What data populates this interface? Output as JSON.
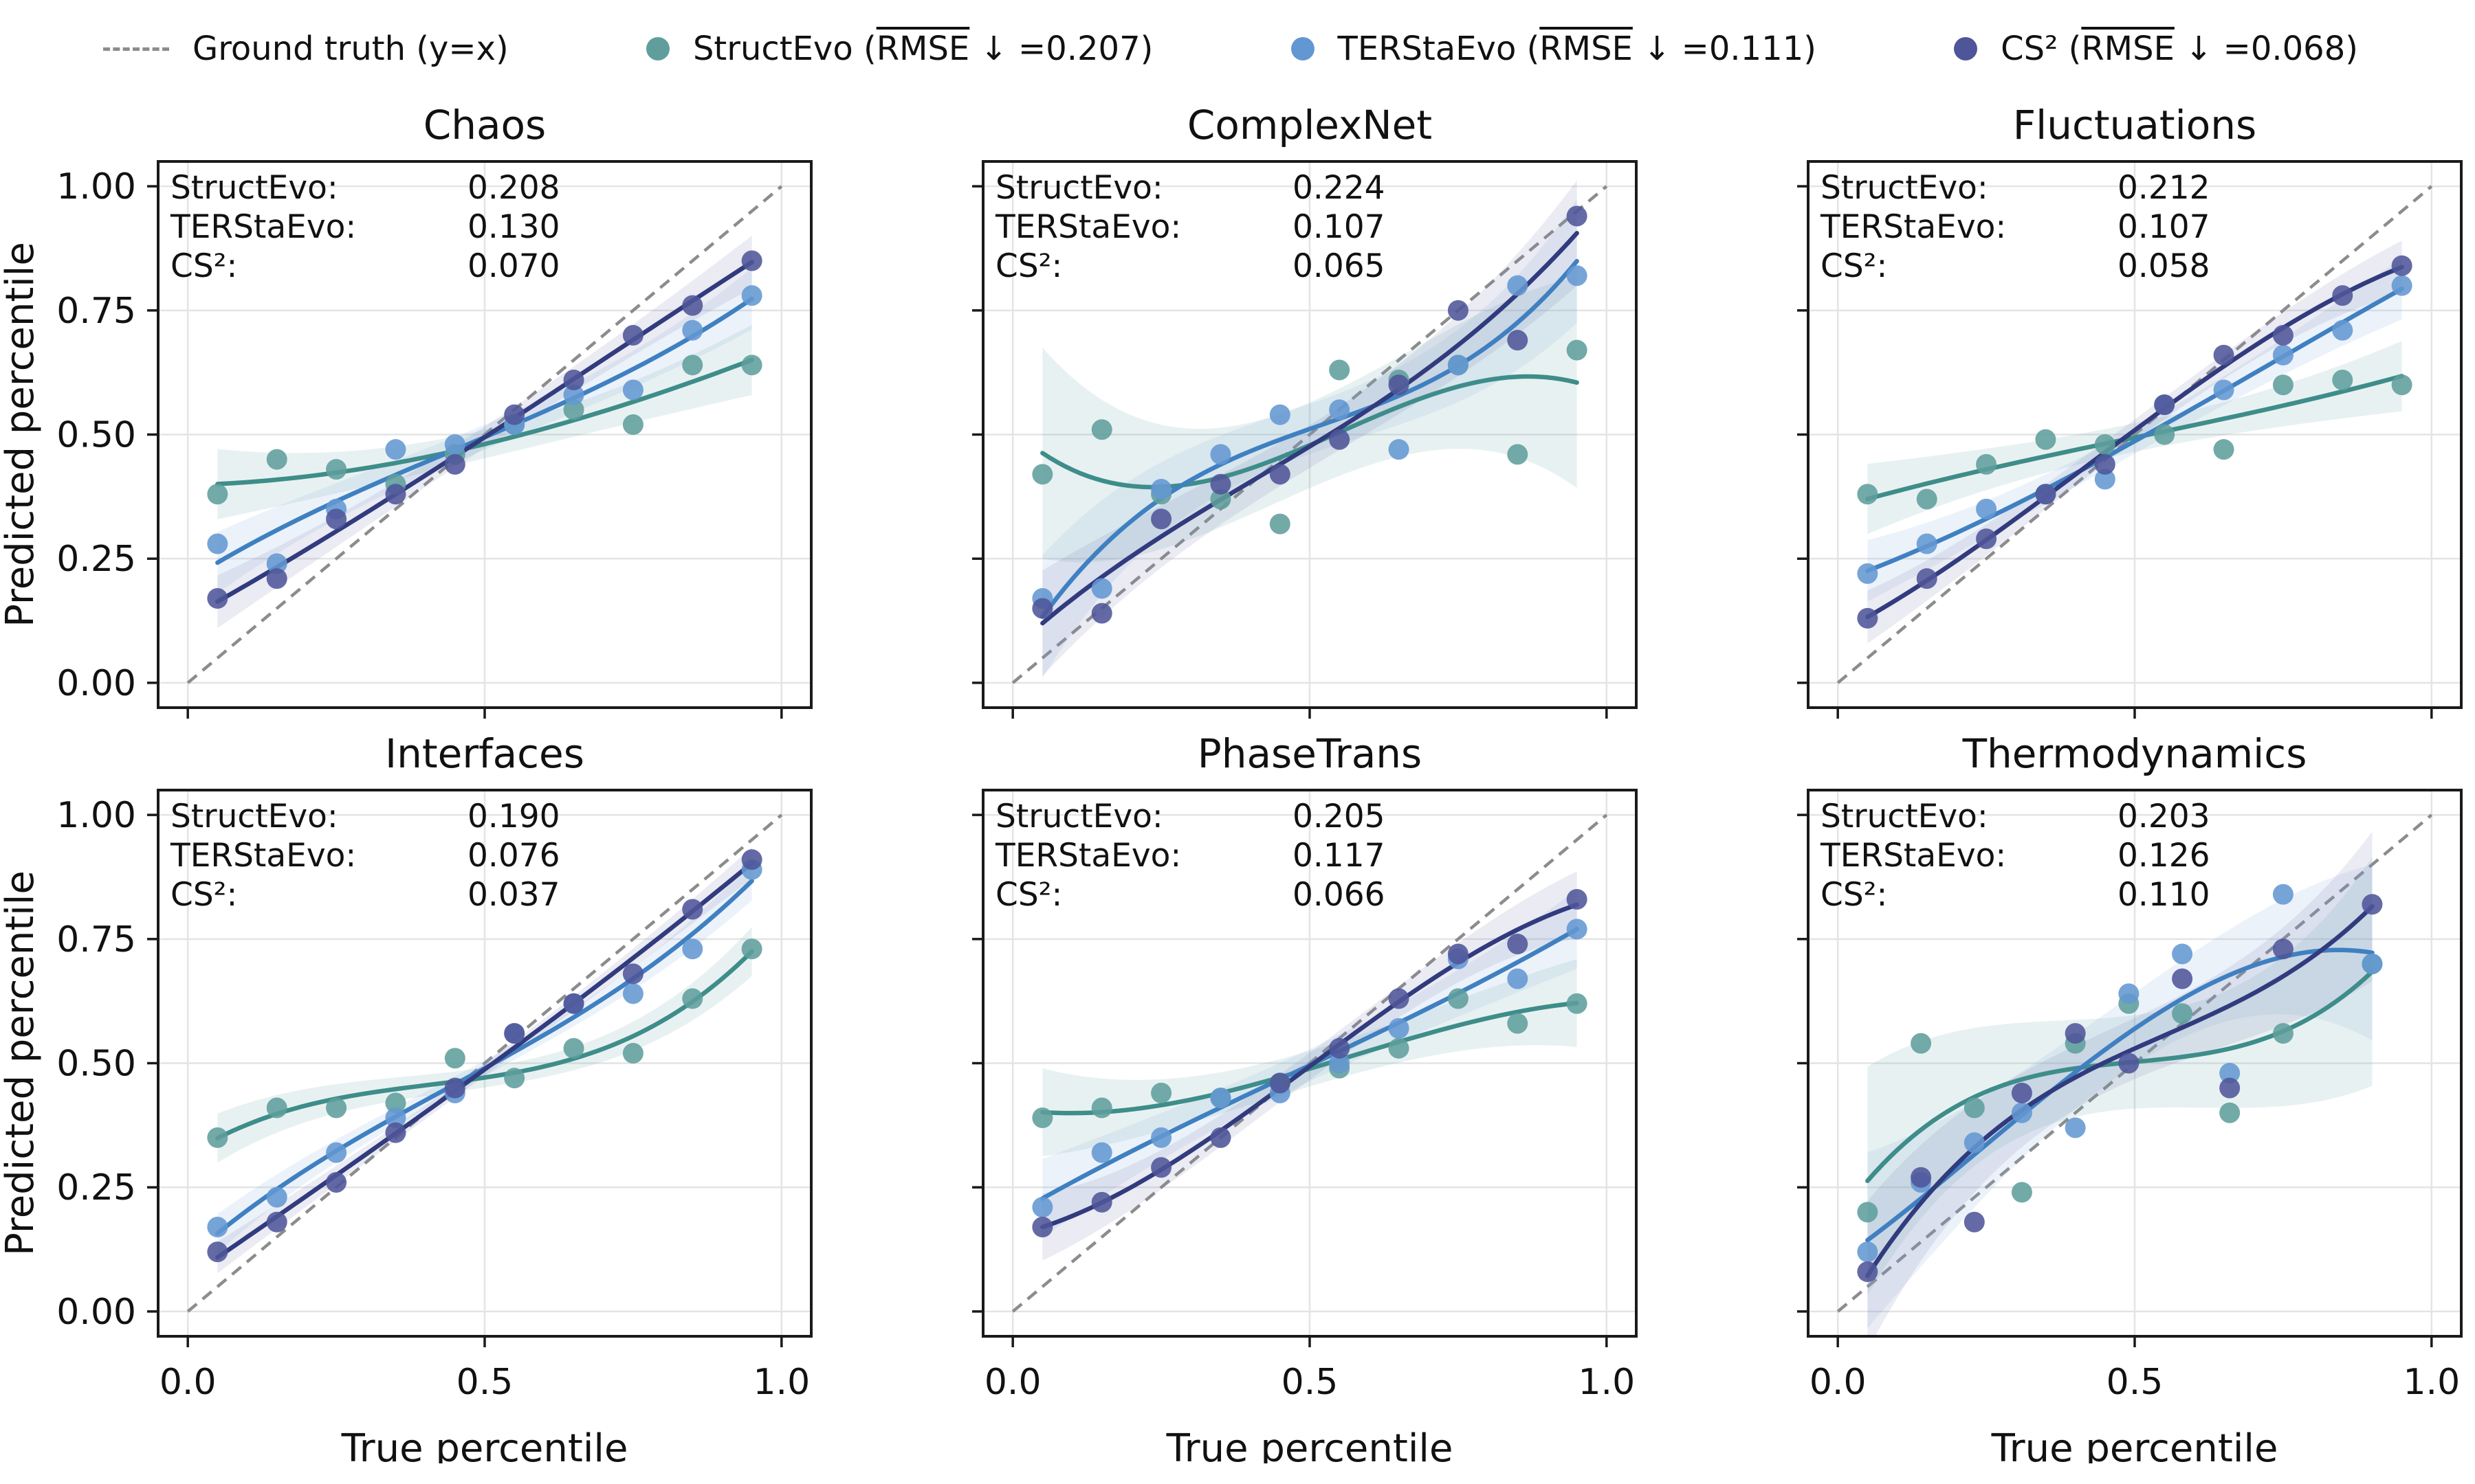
{
  "legend": {
    "ground_truth": {
      "label": "Ground truth (y=x)"
    },
    "series": [
      {
        "key": "structevo",
        "prefix": "StructEvo (",
        "rmse_word": "RMSE",
        "suffix": " ↓ =0.207)"
      },
      {
        "key": "terstaevo",
        "prefix": "TERStaEvo (",
        "rmse_word": "RMSE",
        "suffix": " ↓ =0.111)"
      },
      {
        "key": "cs2",
        "prefix": "CS² (",
        "rmse_word": "RMSE",
        "suffix": " ↓ =0.068)"
      }
    ]
  },
  "colors": {
    "structevo": {
      "line": "#3e8d8a",
      "marker": "#5f9e9c",
      "band": "#6fa8a6"
    },
    "terstaevo": {
      "line": "#3f80c1",
      "marker": "#6397d1",
      "band": "#86afdd"
    },
    "cs2": {
      "line": "#313b7e",
      "marker": "#4e5598",
      "band": "#7b80b6"
    },
    "identity": "#8c8c8c",
    "grid": "#e4e4e4",
    "spine": "#1a1a1a",
    "text": "#111111"
  },
  "axes": {
    "x_label": "True percentile",
    "y_label": "Predicted percentile",
    "x_ticks": {
      "values": [
        0.0,
        0.5,
        1.0
      ],
      "labels": [
        "0.0",
        "0.5",
        "1.0"
      ]
    },
    "y_ticks": {
      "values": [
        0.0,
        0.25,
        0.5,
        0.75,
        1.0
      ],
      "labels": [
        "0.00",
        "0.25",
        "0.50",
        "0.75",
        "1.00"
      ]
    },
    "xlim": [
      -0.05,
      1.05
    ],
    "ylim": [
      -0.05,
      1.05
    ],
    "grid": true
  },
  "chart_data": {
    "type": "scatter",
    "title": "",
    "legend_position": "top",
    "subplots": [
      {
        "title": "Chaos",
        "annotations": [
          {
            "label": "StructEvo:",
            "value": "0.208"
          },
          {
            "label": "TERStaEvo:",
            "value": "0.130"
          },
          {
            "label": "CS²:",
            "value": "0.070"
          }
        ],
        "series": [
          {
            "key": "structevo",
            "name": "StructEvo",
            "band": 0.04,
            "x": [
              0.05,
              0.15,
              0.25,
              0.35,
              0.45,
              0.55,
              0.65,
              0.75,
              0.85,
              0.95
            ],
            "y": [
              0.38,
              0.45,
              0.43,
              0.4,
              0.46,
              0.52,
              0.55,
              0.52,
              0.64,
              0.64
            ]
          },
          {
            "key": "terstaevo",
            "name": "TERStaEvo",
            "band": 0.035,
            "x": [
              0.05,
              0.15,
              0.25,
              0.35,
              0.45,
              0.55,
              0.65,
              0.75,
              0.85,
              0.95
            ],
            "y": [
              0.28,
              0.24,
              0.35,
              0.47,
              0.48,
              0.52,
              0.58,
              0.59,
              0.71,
              0.78
            ]
          },
          {
            "key": "cs2",
            "name": "CS²",
            "band": 0.03,
            "x": [
              0.05,
              0.15,
              0.25,
              0.35,
              0.45,
              0.55,
              0.65,
              0.75,
              0.85,
              0.95
            ],
            "y": [
              0.17,
              0.21,
              0.33,
              0.38,
              0.44,
              0.54,
              0.61,
              0.7,
              0.76,
              0.85
            ]
          }
        ]
      },
      {
        "title": "ComplexNet",
        "annotations": [
          {
            "label": "StructEvo:",
            "value": "0.224"
          },
          {
            "label": "TERStaEvo:",
            "value": "0.107"
          },
          {
            "label": "CS²:",
            "value": "0.065"
          }
        ],
        "series": [
          {
            "key": "structevo",
            "name": "StructEvo",
            "band": 0.12,
            "x": [
              0.05,
              0.15,
              0.25,
              0.35,
              0.45,
              0.55,
              0.65,
              0.75,
              0.85,
              0.95
            ],
            "y": [
              0.42,
              0.51,
              0.38,
              0.37,
              0.32,
              0.63,
              0.61,
              0.64,
              0.46,
              0.67
            ]
          },
          {
            "key": "terstaevo",
            "name": "TERStaEvo",
            "band": 0.07,
            "x": [
              0.05,
              0.15,
              0.25,
              0.35,
              0.45,
              0.55,
              0.65,
              0.75,
              0.85,
              0.95
            ],
            "y": [
              0.17,
              0.19,
              0.39,
              0.46,
              0.54,
              0.55,
              0.47,
              0.64,
              0.8,
              0.82
            ]
          },
          {
            "key": "cs2",
            "name": "CS²",
            "band": 0.06,
            "x": [
              0.05,
              0.15,
              0.25,
              0.35,
              0.45,
              0.55,
              0.65,
              0.75,
              0.85,
              0.95
            ],
            "y": [
              0.15,
              0.14,
              0.33,
              0.4,
              0.42,
              0.49,
              0.6,
              0.75,
              0.69,
              0.94
            ]
          }
        ]
      },
      {
        "title": "Fluctuations",
        "annotations": [
          {
            "label": "StructEvo:",
            "value": "0.212"
          },
          {
            "label": "TERStaEvo:",
            "value": "0.107"
          },
          {
            "label": "CS²:",
            "value": "0.058"
          }
        ],
        "series": [
          {
            "key": "structevo",
            "name": "StructEvo",
            "band": 0.04,
            "x": [
              0.05,
              0.15,
              0.25,
              0.35,
              0.45,
              0.55,
              0.65,
              0.75,
              0.85,
              0.95
            ],
            "y": [
              0.38,
              0.37,
              0.44,
              0.49,
              0.48,
              0.5,
              0.47,
              0.6,
              0.61,
              0.6
            ]
          },
          {
            "key": "terstaevo",
            "name": "TERStaEvo",
            "band": 0.035,
            "x": [
              0.05,
              0.15,
              0.25,
              0.35,
              0.45,
              0.55,
              0.65,
              0.75,
              0.85,
              0.95
            ],
            "y": [
              0.22,
              0.28,
              0.35,
              0.38,
              0.41,
              0.56,
              0.59,
              0.66,
              0.71,
              0.8
            ]
          },
          {
            "key": "cs2",
            "name": "CS²",
            "band": 0.03,
            "x": [
              0.05,
              0.15,
              0.25,
              0.35,
              0.45,
              0.55,
              0.65,
              0.75,
              0.85,
              0.95
            ],
            "y": [
              0.13,
              0.21,
              0.29,
              0.38,
              0.44,
              0.56,
              0.66,
              0.7,
              0.78,
              0.84
            ]
          }
        ]
      },
      {
        "title": "Interfaces",
        "annotations": [
          {
            "label": "StructEvo:",
            "value": "0.190"
          },
          {
            "label": "TERStaEvo:",
            "value": "0.076"
          },
          {
            "label": "CS²:",
            "value": "0.037"
          }
        ],
        "series": [
          {
            "key": "structevo",
            "name": "StructEvo",
            "band": 0.028,
            "x": [
              0.05,
              0.15,
              0.25,
              0.35,
              0.45,
              0.55,
              0.65,
              0.75,
              0.85,
              0.95
            ],
            "y": [
              0.35,
              0.41,
              0.41,
              0.42,
              0.51,
              0.47,
              0.53,
              0.52,
              0.63,
              0.73
            ]
          },
          {
            "key": "terstaevo",
            "name": "TERStaEvo",
            "band": 0.022,
            "x": [
              0.05,
              0.15,
              0.25,
              0.35,
              0.45,
              0.55,
              0.65,
              0.75,
              0.85,
              0.95
            ],
            "y": [
              0.17,
              0.23,
              0.32,
              0.39,
              0.44,
              0.56,
              0.62,
              0.64,
              0.73,
              0.89
            ]
          },
          {
            "key": "cs2",
            "name": "CS²",
            "band": 0.018,
            "x": [
              0.05,
              0.15,
              0.25,
              0.35,
              0.45,
              0.55,
              0.65,
              0.75,
              0.85,
              0.95
            ],
            "y": [
              0.12,
              0.18,
              0.26,
              0.36,
              0.45,
              0.56,
              0.62,
              0.68,
              0.81,
              0.91
            ]
          }
        ]
      },
      {
        "title": "PhaseTrans",
        "annotations": [
          {
            "label": "StructEvo:",
            "value": "0.205"
          },
          {
            "label": "TERStaEvo:",
            "value": "0.117"
          },
          {
            "label": "CS²:",
            "value": "0.066"
          }
        ],
        "series": [
          {
            "key": "structevo",
            "name": "StructEvo",
            "band": 0.05,
            "x": [
              0.05,
              0.15,
              0.25,
              0.35,
              0.45,
              0.55,
              0.65,
              0.75,
              0.85,
              0.95
            ],
            "y": [
              0.39,
              0.41,
              0.44,
              0.43,
              0.46,
              0.49,
              0.53,
              0.63,
              0.58,
              0.62
            ]
          },
          {
            "key": "terstaevo",
            "name": "TERStaEvo",
            "band": 0.045,
            "x": [
              0.05,
              0.15,
              0.25,
              0.35,
              0.45,
              0.55,
              0.65,
              0.75,
              0.85,
              0.95
            ],
            "y": [
              0.21,
              0.32,
              0.35,
              0.43,
              0.44,
              0.5,
              0.57,
              0.71,
              0.67,
              0.77
            ]
          },
          {
            "key": "cs2",
            "name": "CS²",
            "band": 0.038,
            "x": [
              0.05,
              0.15,
              0.25,
              0.35,
              0.45,
              0.55,
              0.65,
              0.75,
              0.85,
              0.95
            ],
            "y": [
              0.17,
              0.22,
              0.29,
              0.35,
              0.46,
              0.53,
              0.63,
              0.72,
              0.74,
              0.83
            ]
          }
        ]
      },
      {
        "title": "Thermodynamics",
        "annotations": [
          {
            "label": "StructEvo:",
            "value": "0.203"
          },
          {
            "label": "TERStaEvo:",
            "value": "0.126"
          },
          {
            "label": "CS²:",
            "value": "0.110"
          }
        ],
        "series": [
          {
            "key": "structevo",
            "name": "StructEvo",
            "band": 0.13,
            "x": [
              0.05,
              0.14,
              0.23,
              0.31,
              0.4,
              0.49,
              0.58,
              0.66,
              0.75,
              0.9
            ],
            "y": [
              0.2,
              0.54,
              0.41,
              0.24,
              0.54,
              0.62,
              0.6,
              0.4,
              0.56,
              0.7
            ]
          },
          {
            "key": "terstaevo",
            "name": "TERStaEvo",
            "band": 0.1,
            "x": [
              0.05,
              0.14,
              0.23,
              0.31,
              0.4,
              0.49,
              0.58,
              0.66,
              0.75,
              0.9
            ],
            "y": [
              0.12,
              0.26,
              0.34,
              0.4,
              0.37,
              0.64,
              0.72,
              0.48,
              0.84,
              0.7
            ]
          },
          {
            "key": "cs2",
            "name": "CS²",
            "band": 0.085,
            "x": [
              0.05,
              0.14,
              0.23,
              0.31,
              0.4,
              0.49,
              0.58,
              0.66,
              0.75,
              0.9
            ],
            "y": [
              0.08,
              0.27,
              0.18,
              0.44,
              0.56,
              0.5,
              0.67,
              0.45,
              0.73,
              0.82
            ]
          }
        ]
      }
    ]
  }
}
